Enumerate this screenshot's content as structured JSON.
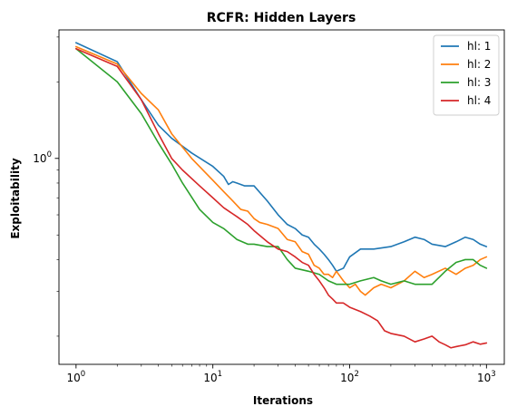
{
  "chart_data": {
    "type": "line",
    "title": "RCFR: Hidden Layers",
    "xlabel": "Iterations",
    "ylabel": "Exploitability",
    "xscale": "log",
    "yscale": "log",
    "xlim": [
      0.75,
      1350
    ],
    "ylim": [
      0.155,
      3.2
    ],
    "grid": false,
    "legend_position": "top-right",
    "x_tick_labels": [
      {
        "value": 1,
        "base": "10",
        "exp": "0"
      },
      {
        "value": 10,
        "base": "10",
        "exp": "1"
      },
      {
        "value": 100,
        "base": "10",
        "exp": "2"
      },
      {
        "value": 1000,
        "base": "10",
        "exp": "3"
      }
    ],
    "y_tick_labels": [
      {
        "value": 1,
        "base": "10",
        "exp": "0"
      }
    ],
    "x_minor_ticks": [
      2,
      3,
      4,
      5,
      6,
      7,
      8,
      9,
      20,
      30,
      40,
      50,
      60,
      70,
      80,
      90,
      200,
      300,
      400,
      500,
      600,
      700,
      800,
      900
    ],
    "y_minor_ticks": [
      0.2,
      0.3,
      0.4,
      0.5,
      0.6,
      0.7,
      0.8,
      0.9,
      2,
      3
    ],
    "series": [
      {
        "name": "hl: 1",
        "color": "#1f77b4",
        "x": [
          1,
          2,
          3,
          4,
          5,
          7,
          10,
          12,
          13,
          14,
          15,
          17,
          20,
          25,
          30,
          35,
          40,
          45,
          50,
          55,
          60,
          65,
          70,
          75,
          80,
          90,
          100,
          120,
          150,
          200,
          250,
          300,
          350,
          400,
          500,
          600,
          700,
          800,
          900,
          1000
        ],
        "y": [
          2.85,
          2.4,
          1.7,
          1.35,
          1.2,
          1.05,
          0.93,
          0.85,
          0.79,
          0.81,
          0.8,
          0.78,
          0.78,
          0.68,
          0.6,
          0.55,
          0.53,
          0.5,
          0.49,
          0.46,
          0.44,
          0.42,
          0.4,
          0.38,
          0.36,
          0.37,
          0.41,
          0.44,
          0.44,
          0.45,
          0.47,
          0.49,
          0.48,
          0.46,
          0.45,
          0.47,
          0.49,
          0.48,
          0.46,
          0.45
        ]
      },
      {
        "name": "hl: 2",
        "color": "#ff7f0e",
        "x": [
          1,
          2,
          3,
          4,
          5,
          7,
          10,
          12,
          14,
          16,
          18,
          20,
          22,
          25,
          30,
          35,
          40,
          45,
          50,
          55,
          60,
          65,
          70,
          75,
          80,
          90,
          100,
          110,
          120,
          130,
          150,
          170,
          200,
          250,
          300,
          350,
          400,
          500,
          600,
          700,
          800,
          900,
          1000
        ],
        "y": [
          2.75,
          2.35,
          1.8,
          1.55,
          1.25,
          1.0,
          0.82,
          0.74,
          0.68,
          0.63,
          0.62,
          0.58,
          0.56,
          0.55,
          0.53,
          0.48,
          0.47,
          0.43,
          0.42,
          0.38,
          0.37,
          0.35,
          0.35,
          0.34,
          0.36,
          0.33,
          0.31,
          0.32,
          0.3,
          0.29,
          0.31,
          0.32,
          0.31,
          0.33,
          0.36,
          0.34,
          0.35,
          0.37,
          0.35,
          0.37,
          0.38,
          0.4,
          0.41
        ]
      },
      {
        "name": "hl: 3",
        "color": "#2ca02c",
        "x": [
          1,
          2,
          3,
          4,
          5,
          6,
          8,
          10,
          12,
          15,
          18,
          20,
          25,
          30,
          35,
          40,
          50,
          60,
          70,
          80,
          90,
          100,
          120,
          150,
          170,
          200,
          250,
          300,
          400,
          500,
          600,
          700,
          800,
          900,
          1000
        ],
        "y": [
          2.7,
          2.0,
          1.5,
          1.15,
          0.95,
          0.8,
          0.63,
          0.56,
          0.53,
          0.48,
          0.46,
          0.46,
          0.45,
          0.45,
          0.4,
          0.37,
          0.36,
          0.35,
          0.33,
          0.32,
          0.32,
          0.32,
          0.33,
          0.34,
          0.33,
          0.32,
          0.33,
          0.32,
          0.32,
          0.36,
          0.39,
          0.4,
          0.4,
          0.38,
          0.37
        ]
      },
      {
        "name": "hl: 4",
        "color": "#d62728",
        "x": [
          1,
          2,
          3,
          4,
          5,
          6,
          8,
          10,
          12,
          15,
          18,
          20,
          25,
          30,
          35,
          40,
          45,
          50,
          55,
          60,
          65,
          70,
          75,
          80,
          90,
          100,
          120,
          140,
          160,
          180,
          200,
          250,
          300,
          350,
          400,
          450,
          500,
          550,
          600,
          700,
          800,
          900,
          1000
        ],
        "y": [
          2.7,
          2.3,
          1.7,
          1.25,
          1.0,
          0.9,
          0.78,
          0.7,
          0.64,
          0.59,
          0.55,
          0.52,
          0.47,
          0.44,
          0.43,
          0.41,
          0.39,
          0.38,
          0.35,
          0.33,
          0.31,
          0.29,
          0.28,
          0.27,
          0.27,
          0.26,
          0.25,
          0.24,
          0.23,
          0.21,
          0.205,
          0.2,
          0.19,
          0.195,
          0.2,
          0.19,
          0.185,
          0.18,
          0.182,
          0.185,
          0.19,
          0.186,
          0.188
        ]
      }
    ]
  }
}
